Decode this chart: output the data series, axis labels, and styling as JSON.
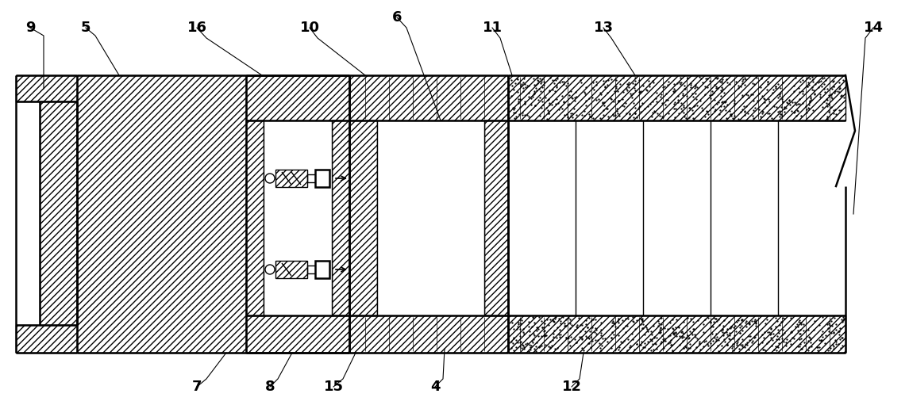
{
  "fig_width": 11.45,
  "fig_height": 5.11,
  "dpi": 100,
  "bg_color": "#ffffff",
  "lw": 1.0,
  "lw_thick": 1.8
}
